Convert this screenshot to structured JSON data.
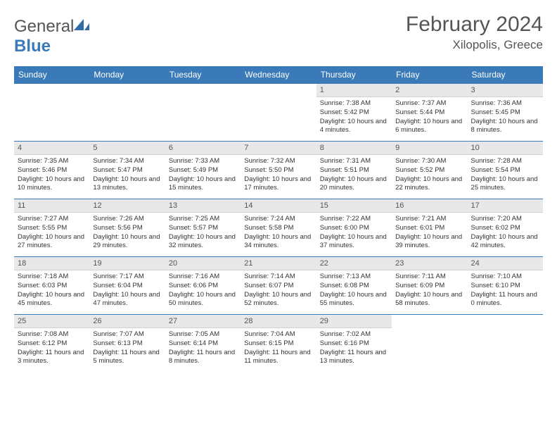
{
  "brand": {
    "part1": "General",
    "part2": "Blue"
  },
  "title": "February 2024",
  "location": "Xilopolis, Greece",
  "colors": {
    "header_bg": "#3a7ab8",
    "header_text": "#ffffff",
    "daynum_bg": "#e8e8e8",
    "border": "#3a7ab8",
    "text": "#333333",
    "title_text": "#555555"
  },
  "day_headers": [
    "Sunday",
    "Monday",
    "Tuesday",
    "Wednesday",
    "Thursday",
    "Friday",
    "Saturday"
  ],
  "weeks": [
    [
      null,
      null,
      null,
      null,
      {
        "n": "1",
        "sunrise": "7:38 AM",
        "sunset": "5:42 PM",
        "daylight": "10 hours and 4 minutes."
      },
      {
        "n": "2",
        "sunrise": "7:37 AM",
        "sunset": "5:44 PM",
        "daylight": "10 hours and 6 minutes."
      },
      {
        "n": "3",
        "sunrise": "7:36 AM",
        "sunset": "5:45 PM",
        "daylight": "10 hours and 8 minutes."
      }
    ],
    [
      {
        "n": "4",
        "sunrise": "7:35 AM",
        "sunset": "5:46 PM",
        "daylight": "10 hours and 10 minutes."
      },
      {
        "n": "5",
        "sunrise": "7:34 AM",
        "sunset": "5:47 PM",
        "daylight": "10 hours and 13 minutes."
      },
      {
        "n": "6",
        "sunrise": "7:33 AM",
        "sunset": "5:49 PM",
        "daylight": "10 hours and 15 minutes."
      },
      {
        "n": "7",
        "sunrise": "7:32 AM",
        "sunset": "5:50 PM",
        "daylight": "10 hours and 17 minutes."
      },
      {
        "n": "8",
        "sunrise": "7:31 AM",
        "sunset": "5:51 PM",
        "daylight": "10 hours and 20 minutes."
      },
      {
        "n": "9",
        "sunrise": "7:30 AM",
        "sunset": "5:52 PM",
        "daylight": "10 hours and 22 minutes."
      },
      {
        "n": "10",
        "sunrise": "7:28 AM",
        "sunset": "5:54 PM",
        "daylight": "10 hours and 25 minutes."
      }
    ],
    [
      {
        "n": "11",
        "sunrise": "7:27 AM",
        "sunset": "5:55 PM",
        "daylight": "10 hours and 27 minutes."
      },
      {
        "n": "12",
        "sunrise": "7:26 AM",
        "sunset": "5:56 PM",
        "daylight": "10 hours and 29 minutes."
      },
      {
        "n": "13",
        "sunrise": "7:25 AM",
        "sunset": "5:57 PM",
        "daylight": "10 hours and 32 minutes."
      },
      {
        "n": "14",
        "sunrise": "7:24 AM",
        "sunset": "5:58 PM",
        "daylight": "10 hours and 34 minutes."
      },
      {
        "n": "15",
        "sunrise": "7:22 AM",
        "sunset": "6:00 PM",
        "daylight": "10 hours and 37 minutes."
      },
      {
        "n": "16",
        "sunrise": "7:21 AM",
        "sunset": "6:01 PM",
        "daylight": "10 hours and 39 minutes."
      },
      {
        "n": "17",
        "sunrise": "7:20 AM",
        "sunset": "6:02 PM",
        "daylight": "10 hours and 42 minutes."
      }
    ],
    [
      {
        "n": "18",
        "sunrise": "7:18 AM",
        "sunset": "6:03 PM",
        "daylight": "10 hours and 45 minutes."
      },
      {
        "n": "19",
        "sunrise": "7:17 AM",
        "sunset": "6:04 PM",
        "daylight": "10 hours and 47 minutes."
      },
      {
        "n": "20",
        "sunrise": "7:16 AM",
        "sunset": "6:06 PM",
        "daylight": "10 hours and 50 minutes."
      },
      {
        "n": "21",
        "sunrise": "7:14 AM",
        "sunset": "6:07 PM",
        "daylight": "10 hours and 52 minutes."
      },
      {
        "n": "22",
        "sunrise": "7:13 AM",
        "sunset": "6:08 PM",
        "daylight": "10 hours and 55 minutes."
      },
      {
        "n": "23",
        "sunrise": "7:11 AM",
        "sunset": "6:09 PM",
        "daylight": "10 hours and 58 minutes."
      },
      {
        "n": "24",
        "sunrise": "7:10 AM",
        "sunset": "6:10 PM",
        "daylight": "11 hours and 0 minutes."
      }
    ],
    [
      {
        "n": "25",
        "sunrise": "7:08 AM",
        "sunset": "6:12 PM",
        "daylight": "11 hours and 3 minutes."
      },
      {
        "n": "26",
        "sunrise": "7:07 AM",
        "sunset": "6:13 PM",
        "daylight": "11 hours and 5 minutes."
      },
      {
        "n": "27",
        "sunrise": "7:05 AM",
        "sunset": "6:14 PM",
        "daylight": "11 hours and 8 minutes."
      },
      {
        "n": "28",
        "sunrise": "7:04 AM",
        "sunset": "6:15 PM",
        "daylight": "11 hours and 11 minutes."
      },
      {
        "n": "29",
        "sunrise": "7:02 AM",
        "sunset": "6:16 PM",
        "daylight": "11 hours and 13 minutes."
      },
      null,
      null
    ]
  ],
  "labels": {
    "sunrise": "Sunrise:",
    "sunset": "Sunset:",
    "daylight": "Daylight:"
  }
}
